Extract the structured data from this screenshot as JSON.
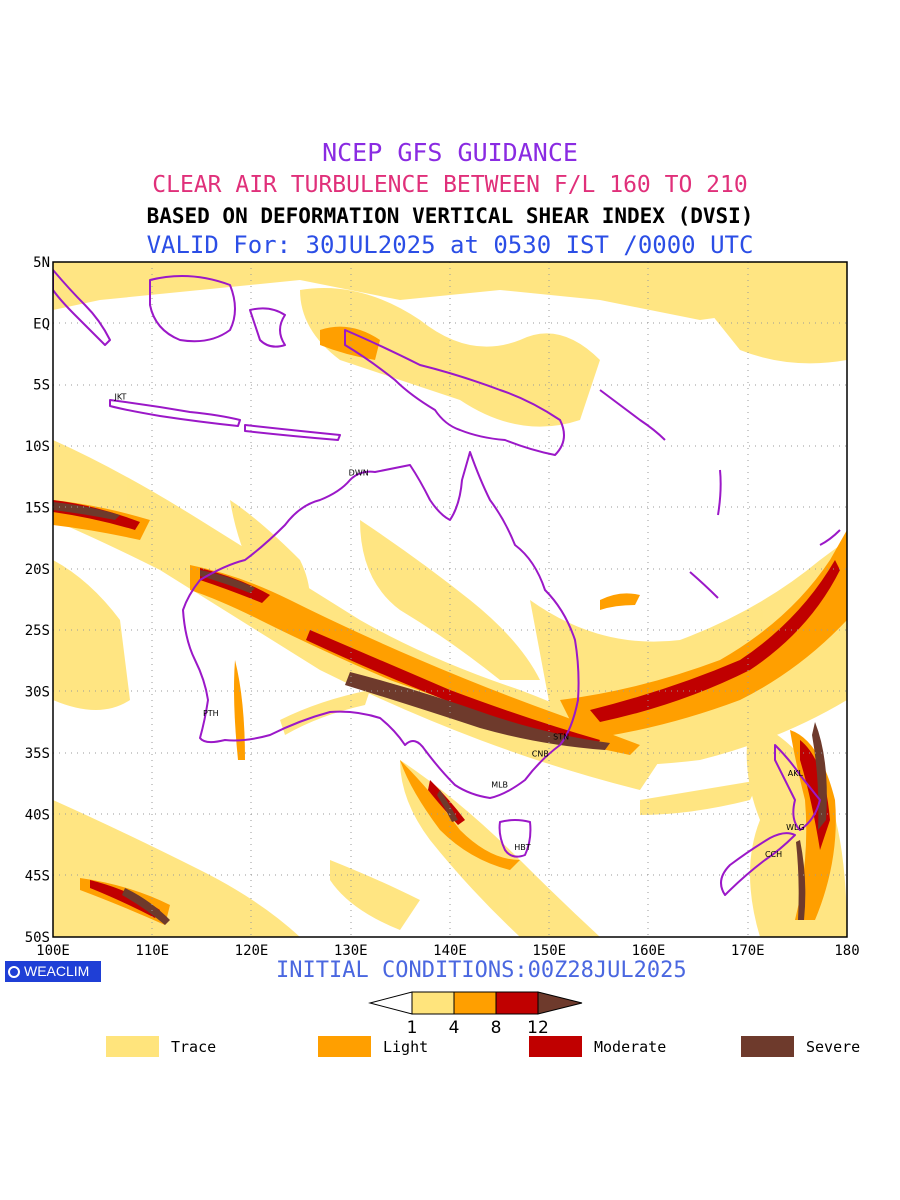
{
  "header": {
    "line1": "NCEP GFS GUIDANCE",
    "line2": "CLEAR AIR TURBULENCE BETWEEN F/L 160 TO 210",
    "line3": "BASED ON DEFORMATION VERTICAL SHEAR INDEX (DVSI)",
    "line4": "VALID For: 30JUL2025 at 0530 IST /0000 UTC"
  },
  "footer": {
    "initial_conditions": "INITIAL CONDITIONS:00Z28JUL2025",
    "logo_text": "WEACLIM"
  },
  "axes": {
    "lon_labels": [
      "100E",
      "110E",
      "120E",
      "130E",
      "140E",
      "150E",
      "160E",
      "170E",
      "180"
    ],
    "lat_labels": [
      "5N",
      "EQ",
      "5S",
      "10S",
      "15S",
      "20S",
      "25S",
      "30S",
      "35S",
      "40S",
      "45S",
      "50S"
    ],
    "lon_range": [
      100,
      180
    ],
    "lat_range": [
      5,
      -50
    ],
    "grid": true
  },
  "cities": [
    {
      "code": "JKT",
      "lon": 106.8,
      "lat": -6.2
    },
    {
      "code": "DWN",
      "lon": 130.8,
      "lat": -12.4
    },
    {
      "code": "PTH",
      "lon": 115.9,
      "lat": -32.0
    },
    {
      "code": "STN",
      "lon": 151.2,
      "lat": -33.9
    },
    {
      "code": "CNB",
      "lon": 149.1,
      "lat": -35.3
    },
    {
      "code": "MLB",
      "lon": 145.0,
      "lat": -37.8
    },
    {
      "code": "HBT",
      "lon": 147.3,
      "lat": -42.9
    },
    {
      "code": "AKL",
      "lon": 174.8,
      "lat": -36.9
    },
    {
      "code": "WLG",
      "lon": 174.8,
      "lat": -41.3
    },
    {
      "code": "CCH",
      "lon": 172.6,
      "lat": -43.5
    }
  ],
  "colorbar": {
    "ticks": [
      "1",
      "4",
      "8",
      "12"
    ],
    "colors": [
      "#ffe47c",
      "#ff9f00",
      "#c00000",
      "#6e3a2c"
    ]
  },
  "legend": [
    {
      "label": "Trace",
      "color": "#ffe47c"
    },
    {
      "label": "Light",
      "color": "#ff9f00"
    },
    {
      "label": "Moderate",
      "color": "#c00000"
    },
    {
      "label": "Severe",
      "color": "#6e3a2c"
    }
  ],
  "colors": {
    "coastline": "#9b18c8",
    "trace": "#ffe47c",
    "light": "#ff9f00",
    "moderate": "#c00000",
    "severe": "#6e3a2c"
  }
}
